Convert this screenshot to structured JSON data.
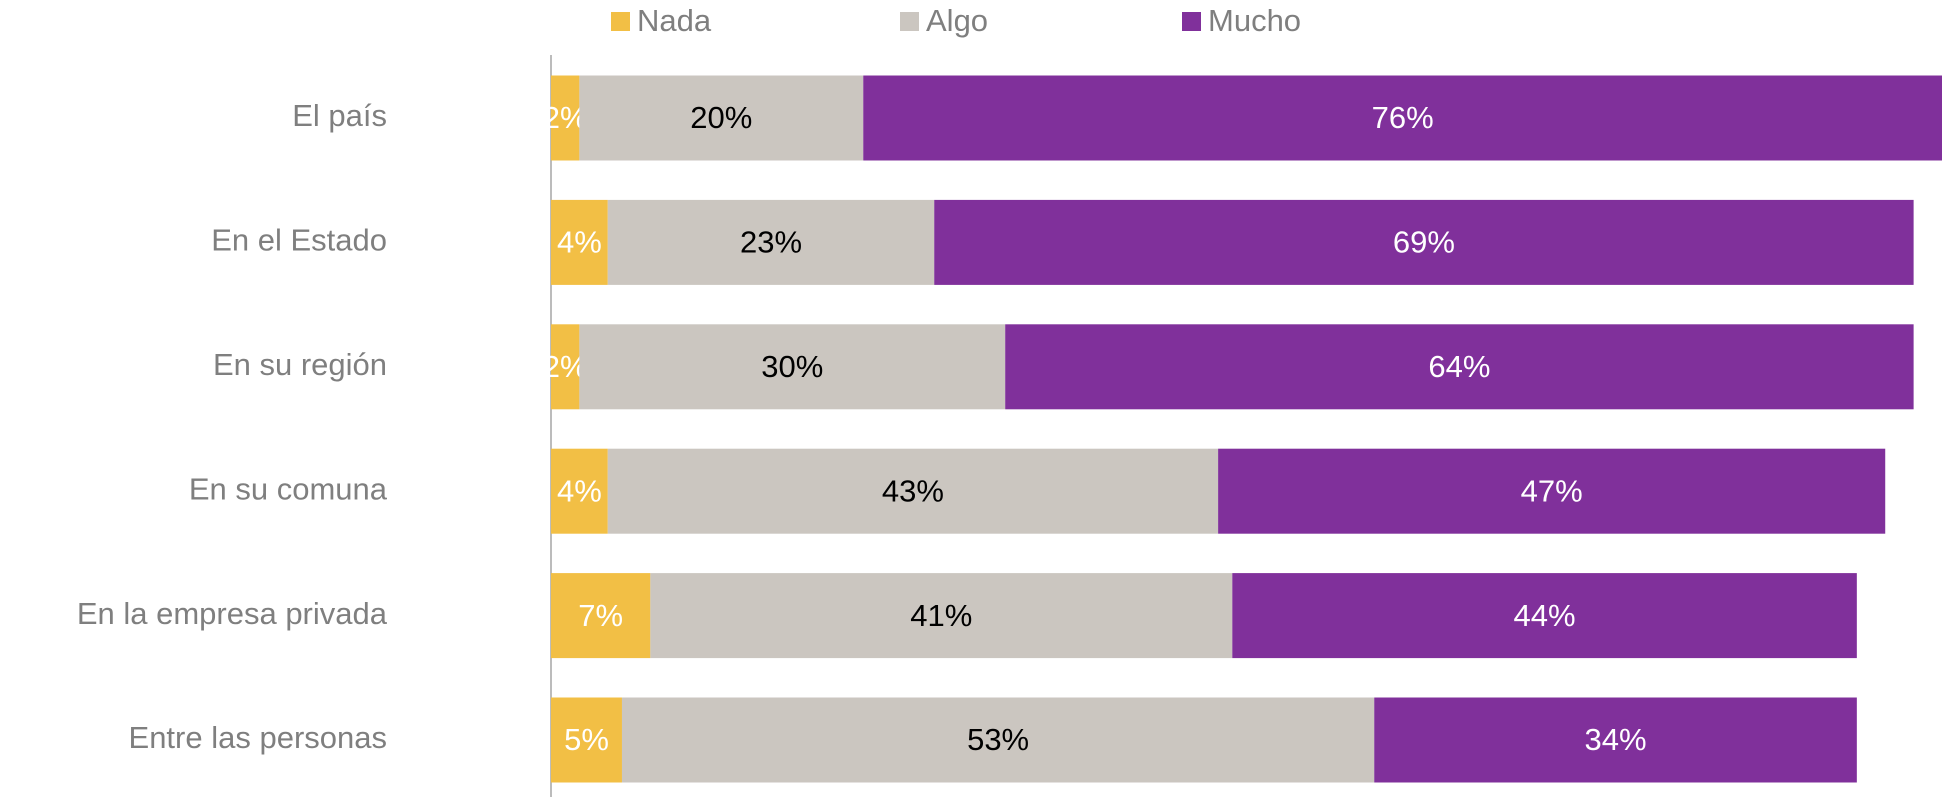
{
  "chart_data": {
    "type": "stacked-barh",
    "categories": [
      "El país",
      "En el Estado",
      "En su región",
      "En su comuna",
      "En la empresa privada",
      "Entre las personas"
    ],
    "series": [
      {
        "name": "Nada",
        "color": "#f2bf45",
        "label_color": "#ffffff",
        "values": [
          2,
          4,
          2,
          4,
          7,
          5
        ],
        "value_labels": [
          "2%",
          "4%",
          "2%",
          "4%",
          "7%",
          "5%"
        ]
      },
      {
        "name": "Algo",
        "color": "#cbc6c0",
        "label_color": "#000000",
        "values": [
          20,
          23,
          30,
          43,
          41,
          53
        ],
        "value_labels": [
          "20%",
          "23%",
          "30%",
          "43%",
          "41%",
          "53%"
        ]
      },
      {
        "name": "Mucho",
        "color": "#80309b",
        "label_color": "#ffffff",
        "values": [
          76,
          69,
          64,
          47,
          44,
          34
        ],
        "value_labels": [
          "76%",
          "69%",
          "64%",
          "47%",
          "44%",
          "34%"
        ]
      }
    ],
    "xlim": [
      0,
      98
    ],
    "legend": "top"
  }
}
